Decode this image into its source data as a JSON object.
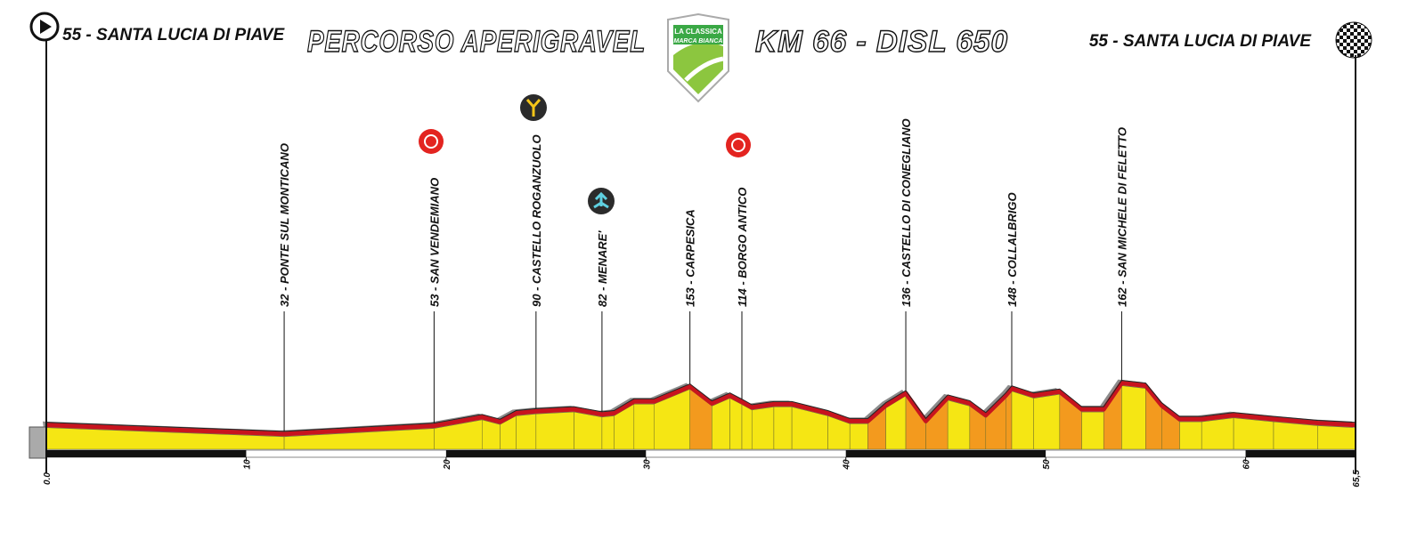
{
  "chart_data": {
    "type": "area",
    "title": "PERCORSO APERIGRAVEL",
    "subtitle": "KM 66 - DISL 650",
    "start_label": "55 - SANTA LUCIA DI PIAVE",
    "end_label": "55 - SANTA LUCIA DI PIAVE",
    "logo": {
      "top": "LA CLASSICA",
      "bottom": "MARCA BIANCA"
    },
    "x": [
      0,
      11.9,
      19.4,
      21.8,
      22.7,
      23.5,
      24.5,
      26.4,
      27.8,
      28.4,
      29.4,
      30.4,
      32.2,
      33.3,
      34.2,
      34.8,
      35.3,
      36.4,
      37.3,
      39.1,
      40.2,
      41.1,
      42.0,
      43.0,
      44.0,
      45.1,
      46.2,
      47.0,
      48.0,
      48.3,
      49.4,
      50.7,
      51.8,
      52.9,
      53.8,
      55.0,
      55.8,
      56.7,
      57.8,
      59.4,
      61.4,
      63.6,
      65.5
    ],
    "values": [
      55,
      32,
      53,
      75,
      63,
      85,
      90,
      95,
      82,
      85,
      115,
      115,
      153,
      110,
      130,
      114,
      100,
      108,
      108,
      85,
      65,
      65,
      105,
      136,
      65,
      125,
      110,
      80,
      130,
      148,
      130,
      140,
      95,
      95,
      162,
      155,
      105,
      70,
      70,
      80,
      70,
      60,
      55
    ],
    "color": "#f5e614",
    "steep_color": "#f39a1e",
    "line_color": "#c8141e",
    "shadow_color": "#8c8c8c",
    "xlim": [
      0,
      65.5
    ],
    "ylim": [
      0,
      1100
    ],
    "xticks": [
      {
        "value": 0,
        "label": "0.0"
      },
      10,
      20,
      30,
      40,
      50,
      60,
      {
        "value": 65.5,
        "label": "65,5"
      }
    ],
    "annotations": [
      {
        "x": 11.9,
        "text": "32 - PONTE SUL MONTICANO"
      },
      {
        "x": 19.4,
        "text": "53 - SAN VENDEMIANO"
      },
      {
        "x": 24.5,
        "text": "90 - CASTELLO ROGANZUOLO"
      },
      {
        "x": 27.8,
        "text": "82 - MENARE'"
      },
      {
        "x": 32.2,
        "text": "153 - CARPESICA"
      },
      {
        "x": 34.8,
        "text": "114 - BORGO ANTICO"
      },
      {
        "x": 43.0,
        "text": "136 - CASTELLO DI CONEGLIANO"
      },
      {
        "x": 48.3,
        "text": "148 - COLLALBRIGO"
      },
      {
        "x": 53.8,
        "text": "162 - SAN MICHELE DI FELETTO"
      }
    ]
  }
}
